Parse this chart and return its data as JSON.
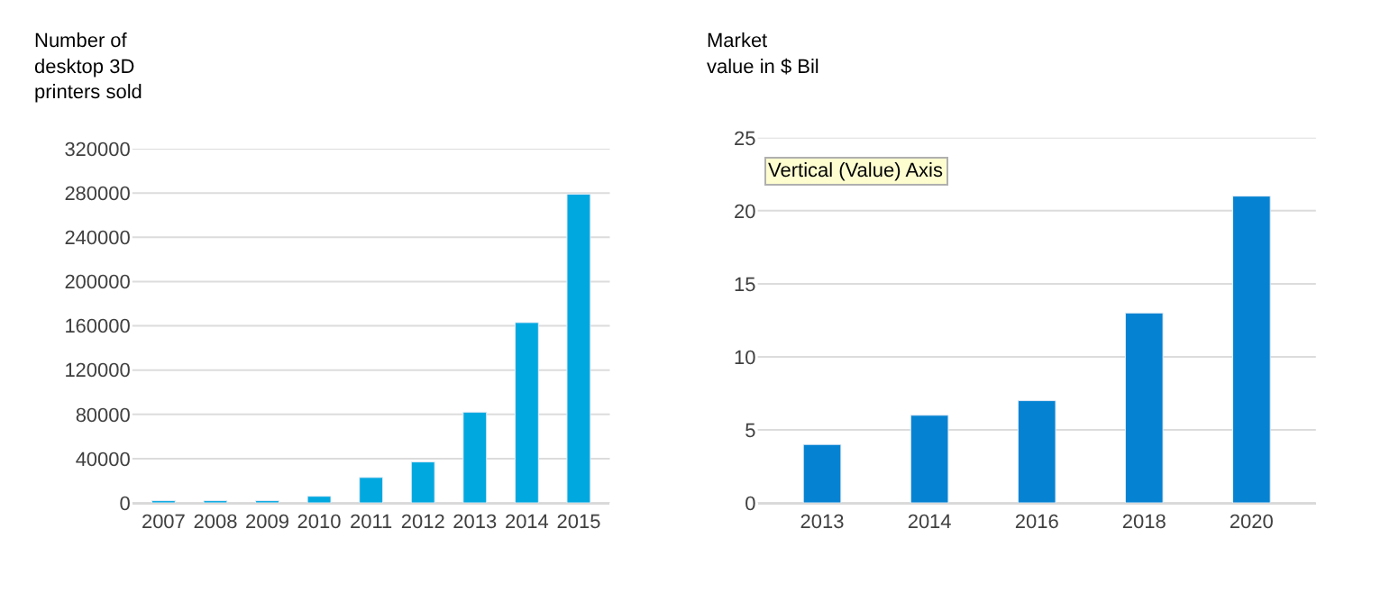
{
  "chart_data": [
    {
      "type": "bar",
      "title": "Number of\ndesktop 3D\nprinters sold",
      "categories": [
        "2007",
        "2008",
        "2009",
        "2010",
        "2011",
        "2012",
        "2013",
        "2014",
        "2015"
      ],
      "values": [
        2000,
        2000,
        2000,
        6000,
        23000,
        37000,
        82000,
        163000,
        279000
      ],
      "color": "#00a8e0",
      "ylim": [
        0,
        320000
      ],
      "yticks": [
        0,
        40000,
        80000,
        120000,
        160000,
        200000,
        240000,
        280000,
        320000
      ],
      "grid": "y"
    },
    {
      "type": "bar",
      "title": "Market\nvalue in $ Bil",
      "categories": [
        "2013",
        "2014",
        "2016",
        "2018",
        "2020"
      ],
      "values": [
        4,
        6,
        7,
        13,
        21
      ],
      "color": "#0583d2",
      "ylim": [
        0,
        25
      ],
      "yticks": [
        0,
        5,
        10,
        15,
        20,
        25
      ],
      "grid": "y",
      "annotations": [
        "Vertical (Value) Axis"
      ]
    }
  ]
}
